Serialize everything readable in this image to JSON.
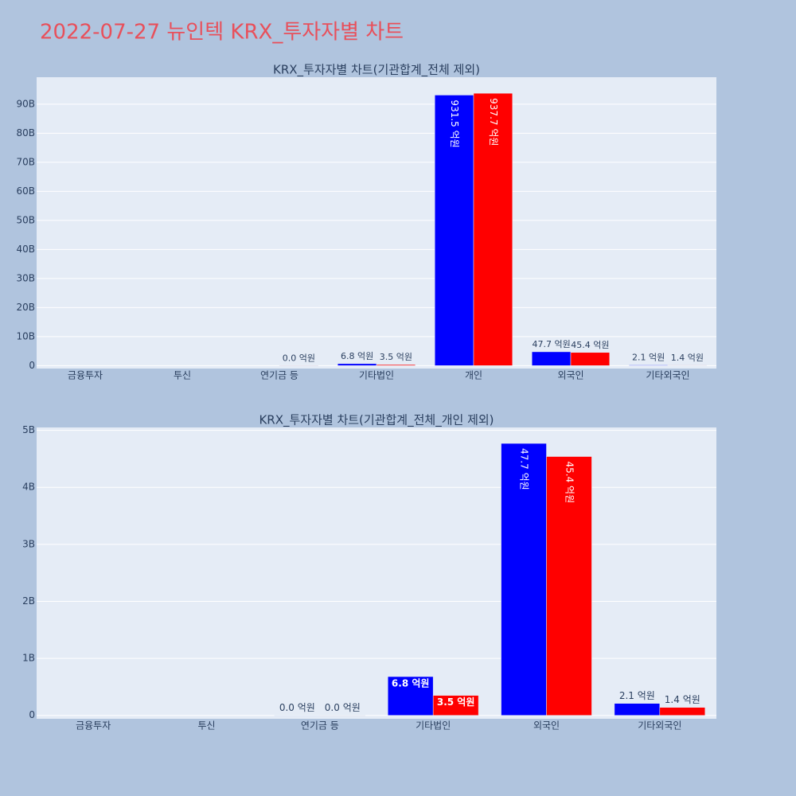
{
  "title": "2022-07-27 뉴인텍 KRX_투자자별 차트",
  "chart_data": [
    {
      "type": "bar",
      "title": "KRX_투자자별 차트(기관합계_전체 제외)",
      "categories": [
        "금융투자",
        "투신",
        "연기금 등",
        "기타법인",
        "개인",
        "외국인",
        "기타외국인"
      ],
      "series": [
        {
          "color": "blue",
          "values": [
            null,
            null,
            null,
            680000000,
            93150000000,
            4770000000,
            210000000
          ],
          "value_labels": [
            null,
            null,
            null,
            "6.8 억원",
            "931.5 억원",
            "47.7 억원",
            "2.1 억원"
          ]
        },
        {
          "color": "red",
          "values": [
            null,
            null,
            0,
            350000000,
            93770000000,
            4540000000,
            140000000
          ],
          "value_labels": [
            null,
            null,
            "0.0 억원",
            "3.5 억원",
            "937.7 억원",
            "45.4 억원",
            "1.4 억원"
          ]
        }
      ],
      "ylim": [
        -1000000000,
        99300000000
      ],
      "yticks": [
        0,
        {
          "value": 10000000000,
          "label": "10B"
        },
        {
          "value": 20000000000,
          "label": "20B"
        },
        {
          "value": 30000000000,
          "label": "30B"
        },
        {
          "value": 40000000000,
          "label": "40B"
        },
        {
          "value": 50000000000,
          "label": "50B"
        },
        {
          "value": 60000000000,
          "label": "60B"
        },
        {
          "value": 70000000000,
          "label": "70B"
        },
        {
          "value": 80000000000,
          "label": "80B"
        },
        {
          "value": 90000000000,
          "label": "90B"
        }
      ],
      "grid": true
    },
    {
      "type": "bar",
      "title": "KRX_투자자별 차트(기관합계_전체_개인 제외)",
      "categories": [
        "금융투자",
        "투신",
        "연기금 등",
        "기타법인",
        "외국인",
        "기타외국인"
      ],
      "series": [
        {
          "color": "blue",
          "values": [
            null,
            null,
            0,
            680000000,
            4770000000,
            210000000
          ],
          "value_labels": [
            null,
            null,
            "0.0 억원",
            "6.8 억원",
            "47.7 억원",
            "2.1 억원"
          ]
        },
        {
          "color": "red",
          "values": [
            null,
            null,
            0,
            350000000,
            4540000000,
            140000000
          ],
          "value_labels": [
            null,
            null,
            "0.0 억원",
            "3.5 억원",
            "45.4 억원",
            "1.4 억원"
          ]
        }
      ],
      "ylim": [
        -60000000,
        5050000000
      ],
      "yticks": [
        0,
        {
          "value": 1000000000,
          "label": "1B"
        },
        {
          "value": 2000000000,
          "label": "2B"
        },
        {
          "value": 3000000000,
          "label": "3B"
        },
        {
          "value": 4000000000,
          "label": "4B"
        },
        {
          "value": 5000000000,
          "label": "5B"
        }
      ],
      "grid": true
    }
  ]
}
